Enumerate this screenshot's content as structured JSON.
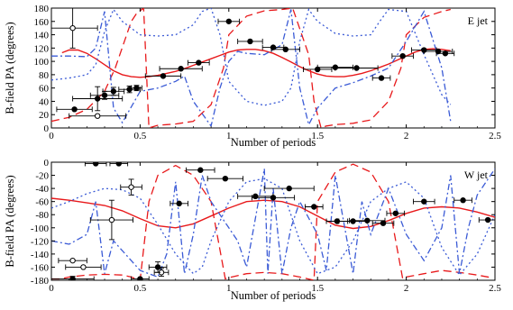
{
  "chart_data": [
    {
      "type": "scatter",
      "panel_label": "E jet",
      "xlabel": "Number of periods",
      "ylabel": "B-field PA (degrees)",
      "xlim": [
        0,
        2.5
      ],
      "ylim": [
        0,
        180
      ],
      "xticks": [
        0,
        0.5,
        1,
        1.5,
        2,
        2.5
      ],
      "xtick_labels": [
        "0",
        "0.5",
        "1",
        "1.5",
        "2",
        "2.5"
      ],
      "yticks": [
        0,
        20,
        40,
        60,
        80,
        100,
        120,
        140,
        160,
        180
      ],
      "ytick_labels": [
        "0",
        "20",
        "40",
        "60",
        "80",
        "100",
        "120",
        "140",
        "160",
        "180"
      ],
      "grid": false,
      "filled_points": [
        {
          "x": 0.13,
          "y": 28,
          "xerr": 0.1,
          "yerr": 0
        },
        {
          "x": 0.26,
          "y": 44,
          "xerr": 0.14,
          "yerr": 18
        },
        {
          "x": 0.3,
          "y": 49,
          "xerr": 0.08,
          "yerr": 6
        },
        {
          "x": 0.35,
          "y": 55,
          "xerr": 0.06,
          "yerr": 6
        },
        {
          "x": 0.44,
          "y": 58,
          "xerr": 0.06,
          "yerr": 5
        },
        {
          "x": 0.48,
          "y": 60,
          "xerr": 0.03,
          "yerr": 4
        },
        {
          "x": 0.63,
          "y": 78,
          "xerr": 0.1,
          "yerr": 0
        },
        {
          "x": 0.73,
          "y": 89,
          "xerr": 0.12,
          "yerr": 0
        },
        {
          "x": 0.83,
          "y": 98,
          "xerr": 0.06,
          "yerr": 0
        },
        {
          "x": 1.0,
          "y": 160,
          "xerr": 0.06,
          "yerr": 0
        },
        {
          "x": 1.12,
          "y": 130,
          "xerr": 0.07,
          "yerr": 0
        },
        {
          "x": 1.25,
          "y": 121,
          "xerr": 0.06,
          "yerr": 0
        },
        {
          "x": 1.32,
          "y": 118,
          "xerr": 0.08,
          "yerr": 0
        },
        {
          "x": 1.5,
          "y": 88,
          "xerr": 0.08,
          "yerr": 0
        },
        {
          "x": 1.6,
          "y": 91,
          "xerr": 0.1,
          "yerr": 0
        },
        {
          "x": 1.72,
          "y": 90,
          "xerr": 0.12,
          "yerr": 0
        },
        {
          "x": 1.86,
          "y": 75,
          "xerr": 0.05,
          "yerr": 0
        },
        {
          "x": 1.98,
          "y": 108,
          "xerr": 0.06,
          "yerr": 0
        },
        {
          "x": 2.1,
          "y": 117,
          "xerr": 0.07,
          "yerr": 0
        },
        {
          "x": 2.18,
          "y": 115,
          "xerr": 0.08,
          "yerr": 0
        },
        {
          "x": 2.22,
          "y": 112,
          "xerr": 0.05,
          "yerr": 0
        }
      ],
      "open_points": [
        {
          "x": 0.12,
          "y": 150,
          "xerr": 0.14,
          "yerr": 30
        },
        {
          "x": 0.26,
          "y": 18,
          "xerr": 0.16,
          "yerr": 0
        }
      ],
      "curves": [
        {
          "style": "solid",
          "color": "#e8191b",
          "x": [
            0.06,
            0.1,
            0.15,
            0.2,
            0.25,
            0.3,
            0.35,
            0.4,
            0.45,
            0.5,
            0.55,
            0.6,
            0.65,
            0.7,
            0.75,
            0.8,
            0.85,
            0.9,
            0.95,
            1.0,
            1.05,
            1.1,
            1.15,
            1.2,
            1.25,
            1.3,
            1.35,
            1.4,
            1.45,
            1.5,
            1.55,
            1.6,
            1.65,
            1.7,
            1.75,
            1.8,
            1.85,
            1.9,
            1.95,
            2.0,
            2.05,
            2.1,
            2.15,
            2.2,
            2.25
          ],
          "y": [
            113,
            117,
            117,
            112,
            104,
            95,
            86,
            80,
            77,
            76,
            77,
            79,
            82,
            85,
            89,
            94,
            99,
            104,
            109,
            114,
            117,
            118,
            118,
            116,
            112,
            106,
            99,
            92,
            86,
            81,
            78,
            77,
            77,
            79,
            82,
            86,
            91,
            96,
            102,
            108,
            114,
            118,
            119,
            118,
            116
          ]
        },
        {
          "style": "dashed",
          "color": "#e8191b",
          "x": [
            0.0,
            0.1,
            0.2,
            0.3,
            0.36,
            0.45,
            0.48,
            0.52,
            0.55,
            0.6,
            0.65,
            0.7,
            0.8,
            0.9,
            0.97,
            1.0,
            1.1,
            1.2,
            1.3,
            1.36,
            1.45,
            1.48,
            1.52,
            1.55,
            1.6,
            1.65,
            1.7,
            1.8,
            1.9,
            1.97,
            2.0,
            2.1,
            2.2,
            2.25
          ],
          "y": [
            10,
            16,
            28,
            55,
            90,
            160,
            172,
            180,
            0,
            4,
            5,
            6,
            10,
            35,
            90,
            140,
            168,
            176,
            178,
            180,
            110,
            40,
            0,
            3,
            5,
            6,
            7,
            12,
            40,
            90,
            140,
            166,
            175,
            178
          ]
        },
        {
          "style": "dotted",
          "color": "#3b5bd6",
          "x": [
            0.0,
            0.1,
            0.2,
            0.25,
            0.3,
            0.35,
            0.4,
            0.5,
            0.6,
            0.7,
            0.8,
            0.85,
            0.9,
            0.95,
            1.0,
            1.1,
            1.2,
            1.3,
            1.35,
            1.4,
            1.45,
            1.5,
            1.6,
            1.7,
            1.8,
            1.85,
            1.9,
            2.0,
            2.1,
            2.2,
            2.25
          ],
          "y": [
            72,
            75,
            80,
            95,
            145,
            178,
            160,
            140,
            138,
            140,
            155,
            175,
            180,
            140,
            70,
            40,
            34,
            40,
            60,
            130,
            178,
            160,
            142,
            138,
            140,
            160,
            178,
            175,
            110,
            50,
            35
          ]
        },
        {
          "style": "dashdot",
          "color": "#3b5bd6",
          "x": [
            0.0,
            0.1,
            0.2,
            0.25,
            0.3,
            0.35,
            0.4,
            0.5,
            0.6,
            0.7,
            0.75,
            0.8,
            0.9,
            0.95,
            1.0,
            1.05,
            1.1,
            1.2,
            1.3,
            1.35,
            1.4,
            1.45,
            1.5,
            1.6,
            1.7,
            1.8,
            1.9,
            2.0,
            2.1,
            2.2,
            2.25
          ],
          "y": [
            108,
            108,
            107,
            120,
            175,
            30,
            8,
            55,
            60,
            70,
            78,
            40,
            3,
            60,
            100,
            115,
            112,
            110,
            125,
            178,
            60,
            5,
            30,
            60,
            68,
            78,
            90,
            130,
            175,
            90,
            10
          ]
        }
      ]
    },
    {
      "type": "scatter",
      "panel_label": "W jet",
      "xlabel": "Number of periods",
      "ylabel": "B-field PA (degrees)",
      "xlim": [
        0,
        2.5
      ],
      "ylim": [
        -180,
        0
      ],
      "xticks": [
        0,
        0.5,
        1,
        1.5,
        2,
        2.5
      ],
      "xtick_labels": [
        "0",
        "0.5",
        "1",
        "1.5",
        "2",
        "2.5"
      ],
      "yticks": [
        0,
        -20,
        -40,
        -60,
        -80,
        -100,
        -120,
        -140,
        -160,
        -180
      ],
      "ytick_labels": [
        "0",
        "-20",
        "-40",
        "-60",
        "-80",
        "-100",
        "-120",
        "-140",
        "-160",
        "-180"
      ],
      "grid": false,
      "filled_points": [
        {
          "x": 0.12,
          "y": -178,
          "xerr": 0.12,
          "yerr": 4
        },
        {
          "x": 0.25,
          "y": -2,
          "xerr": 0.06,
          "yerr": 0
        },
        {
          "x": 0.38,
          "y": -2,
          "xerr": 0.05,
          "yerr": 0
        },
        {
          "x": 0.5,
          "y": -178,
          "xerr": 0.05,
          "yerr": 0
        },
        {
          "x": 0.6,
          "y": -160,
          "xerr": 0.05,
          "yerr": 8
        },
        {
          "x": 0.72,
          "y": -63,
          "xerr": 0.05,
          "yerr": 0
        },
        {
          "x": 0.84,
          "y": -12,
          "xerr": 0.08,
          "yerr": 0
        },
        {
          "x": 0.98,
          "y": -25,
          "xerr": 0.1,
          "yerr": 0
        },
        {
          "x": 1.15,
          "y": -52,
          "xerr": 0.1,
          "yerr": 0
        },
        {
          "x": 1.25,
          "y": -54,
          "xerr": 0.12,
          "yerr": 0
        },
        {
          "x": 1.34,
          "y": -40,
          "xerr": 0.14,
          "yerr": 0
        },
        {
          "x": 1.48,
          "y": -68,
          "xerr": 0.05,
          "yerr": 0
        },
        {
          "x": 1.61,
          "y": -90,
          "xerr": 0.06,
          "yerr": 0
        },
        {
          "x": 1.7,
          "y": -90,
          "xerr": 0.08,
          "yerr": 0
        },
        {
          "x": 1.78,
          "y": -89,
          "xerr": 0.1,
          "yerr": 0
        },
        {
          "x": 1.87,
          "y": -93,
          "xerr": 0.06,
          "yerr": 0
        },
        {
          "x": 1.94,
          "y": -78,
          "xerr": 0.05,
          "yerr": 0
        },
        {
          "x": 2.1,
          "y": -60,
          "xerr": 0.06,
          "yerr": 0
        },
        {
          "x": 2.32,
          "y": -58,
          "xerr": 0.05,
          "yerr": 0
        },
        {
          "x": 2.46,
          "y": -88,
          "xerr": 0.05,
          "yerr": 0
        }
      ],
      "open_points": [
        {
          "x": 0.12,
          "y": -150,
          "xerr": 0.08,
          "yerr": 0
        },
        {
          "x": 0.18,
          "y": -160,
          "xerr": 0.1,
          "yerr": 0
        },
        {
          "x": 0.34,
          "y": -88,
          "xerr": 0.12,
          "yerr": 30
        },
        {
          "x": 0.45,
          "y": -38,
          "xerr": 0.06,
          "yerr": 12
        },
        {
          "x": 0.62,
          "y": -168,
          "xerr": 0.04,
          "yerr": 6
        }
      ],
      "curves": [
        {
          "style": "solid",
          "color": "#e8191b",
          "x": [
            0.0,
            0.1,
            0.2,
            0.3,
            0.4,
            0.5,
            0.6,
            0.7,
            0.8,
            0.9,
            1.0,
            1.1,
            1.2,
            1.3,
            1.4,
            1.5,
            1.6,
            1.7,
            1.8,
            1.9,
            2.0,
            2.1,
            2.2,
            2.3,
            2.4,
            2.5
          ],
          "y": [
            -55,
            -58,
            -62,
            -66,
            -74,
            -86,
            -97,
            -100,
            -94,
            -82,
            -70,
            -60,
            -58,
            -60,
            -68,
            -82,
            -96,
            -101,
            -98,
            -89,
            -78,
            -70,
            -68,
            -70,
            -76,
            -84
          ]
        },
        {
          "style": "dashed",
          "color": "#e8191b",
          "x": [
            0.0,
            0.05,
            0.1,
            0.2,
            0.3,
            0.4,
            0.45,
            0.5,
            0.55,
            0.6,
            0.7,
            0.8,
            0.9,
            0.98,
            1.0,
            1.1,
            1.2,
            1.3,
            1.4,
            1.48,
            1.5,
            1.6,
            1.7,
            1.8,
            1.9,
            1.98,
            2.0,
            2.1,
            2.2,
            2.3,
            2.4,
            2.48
          ],
          "y": [
            -178,
            -178,
            -175,
            -172,
            -171,
            -172,
            -175,
            -180,
            -60,
            -20,
            -5,
            -20,
            -60,
            -178,
            -176,
            -170,
            -168,
            -170,
            -175,
            -180,
            -60,
            -15,
            -3,
            -15,
            -60,
            -178,
            -175,
            -170,
            -165,
            -168,
            -172,
            -176
          ]
        },
        {
          "style": "dotted",
          "color": "#3b5bd6",
          "x": [
            0.0,
            0.1,
            0.2,
            0.3,
            0.4,
            0.5,
            0.6,
            0.7,
            0.8,
            0.85,
            0.9,
            1.0,
            1.1,
            1.2,
            1.3,
            1.4,
            1.5,
            1.6,
            1.7,
            1.8,
            1.9,
            2.0,
            2.1,
            2.2,
            2.3,
            2.4,
            2.5
          ],
          "y": [
            -70,
            -60,
            -48,
            -40,
            -42,
            -55,
            -95,
            -140,
            -170,
            -160,
            -120,
            -60,
            -30,
            -25,
            -40,
            -120,
            -170,
            -160,
            -120,
            -60,
            -40,
            -30,
            -55,
            -130,
            -172,
            -140,
            -80
          ]
        },
        {
          "style": "dashdot",
          "color": "#3b5bd6",
          "x": [
            0.0,
            0.1,
            0.2,
            0.25,
            0.3,
            0.35,
            0.45,
            0.5,
            0.6,
            0.65,
            0.7,
            0.75,
            0.8,
            0.85,
            0.9,
            1.0,
            1.05,
            1.1,
            1.2,
            1.22,
            1.25,
            1.3,
            1.35,
            1.4,
            1.5,
            1.55,
            1.6,
            1.7,
            1.75,
            1.8,
            1.9,
            2.0,
            2.1,
            2.2,
            2.25,
            2.3,
            2.35,
            2.4,
            2.5
          ],
          "y": [
            -120,
            -125,
            -110,
            -60,
            -170,
            -120,
            -150,
            -165,
            -175,
            -140,
            -30,
            -170,
            -110,
            -20,
            -60,
            -100,
            -120,
            -160,
            -10,
            -170,
            -40,
            -170,
            -100,
            -60,
            -110,
            -165,
            -20,
            -170,
            -60,
            -110,
            -40,
            -110,
            -150,
            -100,
            -20,
            -170,
            -100,
            -50,
            -10
          ]
        }
      ]
    }
  ]
}
